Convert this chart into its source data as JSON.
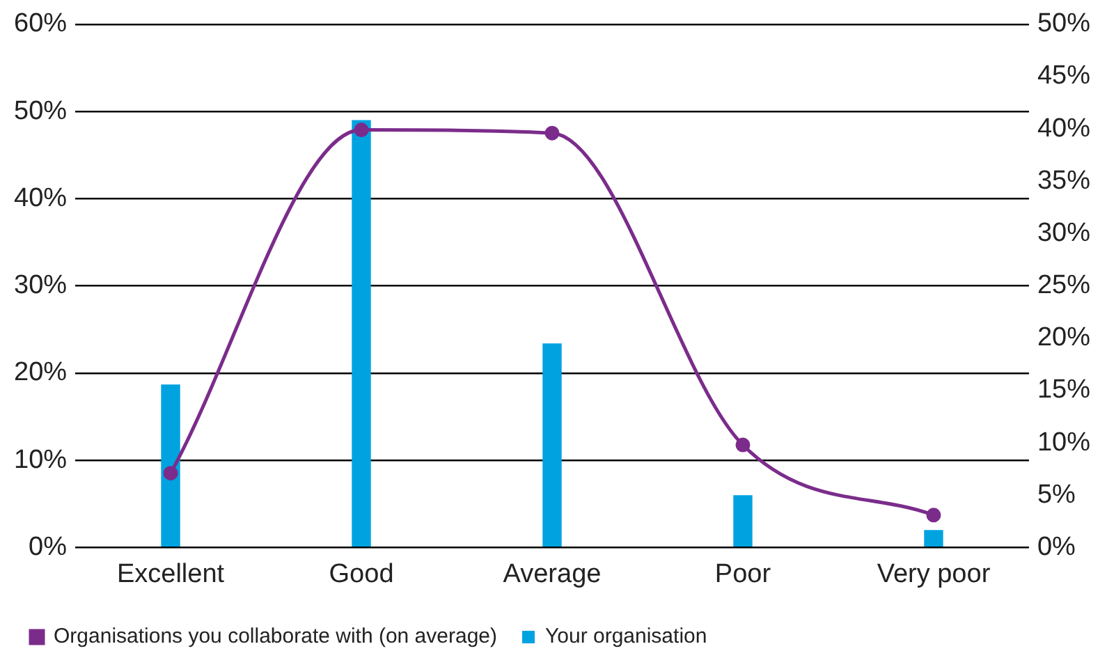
{
  "chart_data": {
    "type": "bar",
    "categories": [
      "Excellent",
      "Good",
      "Average",
      "Poor",
      "Very poor"
    ],
    "series": [
      {
        "name": "Your organisation",
        "color": "#00a3e0",
        "values": [
          18.7,
          49,
          23.4,
          6,
          2
        ]
      },
      {
        "name": "Organisations you collaborate with (on average)",
        "type": "line",
        "axis": "y2",
        "color": "#7b2c8b",
        "values": [
          7.1,
          39.9,
          39.6,
          9.8,
          3.1
        ]
      }
    ],
    "ylim": [
      0,
      60
    ],
    "yticks": [
      {
        "value": 0,
        "label": "0%"
      },
      {
        "value": 10,
        "label": "10%"
      },
      {
        "value": 20,
        "label": "20%"
      },
      {
        "value": 30,
        "label": "30%"
      },
      {
        "value": 40,
        "label": "40%"
      },
      {
        "value": 50,
        "label": "50%"
      },
      {
        "value": 60,
        "label": "60%"
      }
    ],
    "y2lim": [
      0,
      50
    ],
    "y2ticks": [
      {
        "value": 0,
        "label": "0%"
      },
      {
        "value": 5,
        "label": "5%"
      },
      {
        "value": 10,
        "label": "10%"
      },
      {
        "value": 15,
        "label": "15%"
      },
      {
        "value": 20,
        "label": "20%"
      },
      {
        "value": 25,
        "label": "25%"
      },
      {
        "value": 30,
        "label": "30%"
      },
      {
        "value": 35,
        "label": "35%"
      },
      {
        "value": 40,
        "label": "40%"
      },
      {
        "value": 45,
        "label": "45%"
      },
      {
        "value": 50,
        "label": "50%"
      }
    ],
    "grid": "y",
    "legend": "bottom left",
    "marker": "circle"
  }
}
